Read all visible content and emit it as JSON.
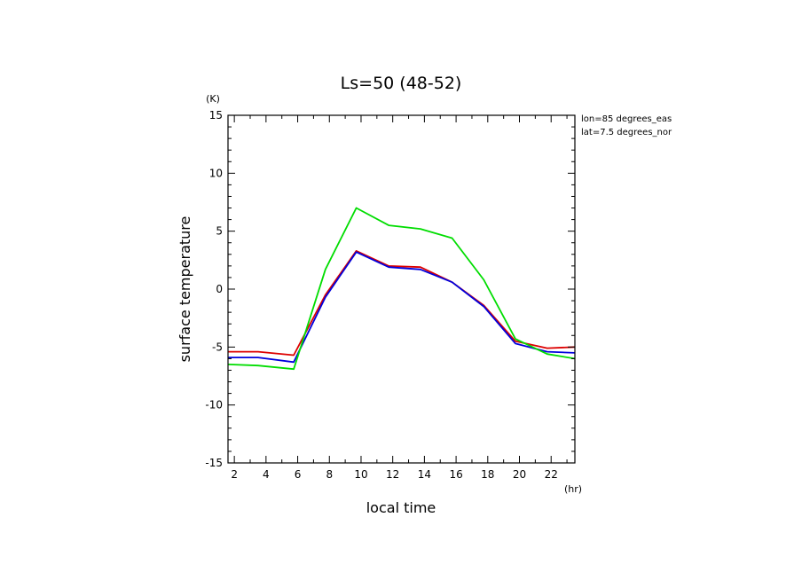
{
  "chart_data": {
    "type": "line",
    "title": "Ls=50 (48-52)",
    "xlabel": "local time",
    "ylabel": "surface temperature",
    "x_unit": "(hr)",
    "y_unit": "(K)",
    "annotations": [
      "lon=85 degrees_eas",
      "lat=7.5 degrees_nor"
    ],
    "xlim": [
      1.6,
      23.5
    ],
    "ylim": [
      -15,
      15
    ],
    "xticks": [
      2,
      4,
      6,
      8,
      10,
      12,
      14,
      16,
      18,
      20,
      22
    ],
    "yticks": [
      -15,
      -10,
      -5,
      0,
      5,
      10,
      15
    ],
    "grid": false,
    "x": [
      1.6,
      3.5,
      5.75,
      7.75,
      9.7,
      11.75,
      13.75,
      15.75,
      17.75,
      19.75,
      21.75,
      23.5
    ],
    "series": [
      {
        "color": "#dd0000",
        "values": [
          -5.4,
          -5.4,
          -5.7,
          -0.5,
          3.3,
          2.0,
          1.9,
          0.6,
          -1.4,
          -4.5,
          -5.1,
          -5.0
        ]
      },
      {
        "color": "#0000dd",
        "values": [
          -5.9,
          -5.9,
          -6.3,
          -0.7,
          3.2,
          1.9,
          1.7,
          0.6,
          -1.5,
          -4.7,
          -5.4,
          -5.5
        ]
      },
      {
        "color": "#00dd00",
        "values": [
          -6.5,
          -6.6,
          -6.9,
          1.7,
          7.0,
          5.5,
          5.2,
          4.4,
          0.8,
          -4.3,
          -5.6,
          -6.0
        ]
      }
    ]
  }
}
